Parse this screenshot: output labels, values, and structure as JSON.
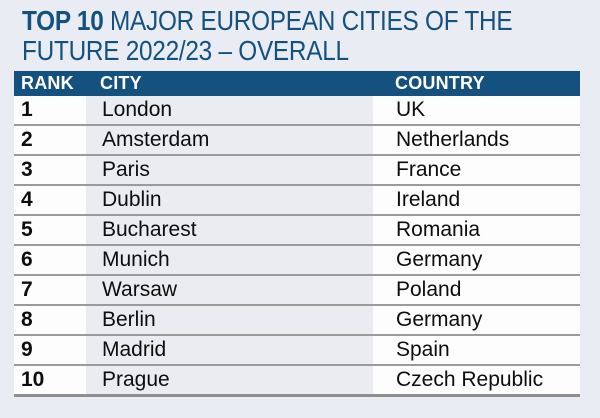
{
  "title": {
    "highlight": "TOP 10",
    "line1_rest": " MAJOR EUROPEAN CITIES OF THE",
    "line2": "FUTURE 2022/23 – OVERALL"
  },
  "table": {
    "headers": {
      "rank": "RANK",
      "city": "CITY",
      "country": "COUNTRY"
    },
    "rows": [
      {
        "rank": "1",
        "city": "London",
        "country": "UK"
      },
      {
        "rank": "2",
        "city": "Amsterdam",
        "country": "Netherlands"
      },
      {
        "rank": "3",
        "city": "Paris",
        "country": "France"
      },
      {
        "rank": "4",
        "city": "Dublin",
        "country": "Ireland"
      },
      {
        "rank": "5",
        "city": "Bucharest",
        "country": "Romania"
      },
      {
        "rank": "6",
        "city": "Munich",
        "country": "Germany"
      },
      {
        "rank": "7",
        "city": "Warsaw",
        "country": "Poland"
      },
      {
        "rank": "8",
        "city": "Berlin",
        "country": "Germany"
      },
      {
        "rank": "9",
        "city": "Madrid",
        "country": "Spain"
      },
      {
        "rank": "10",
        "city": "Prague",
        "country": "Czech Republic"
      }
    ]
  },
  "colors": {
    "accent_blue": "#14517e",
    "page_background": "#eaecf4",
    "city_column_background": "#ebecf2",
    "divider_gray": "#9b9b9b",
    "text_black": "#0d0d0d",
    "header_text": "#ffffff"
  },
  "chart_data": {
    "type": "table",
    "title": "TOP 10 MAJOR EUROPEAN CITIES OF THE FUTURE 2022/23 – OVERALL",
    "columns": [
      "RANK",
      "CITY",
      "COUNTRY"
    ],
    "rows": [
      [
        "1",
        "London",
        "UK"
      ],
      [
        "2",
        "Amsterdam",
        "Netherlands"
      ],
      [
        "3",
        "Paris",
        "France"
      ],
      [
        "4",
        "Dublin",
        "Ireland"
      ],
      [
        "5",
        "Bucharest",
        "Romania"
      ],
      [
        "6",
        "Munich",
        "Germany"
      ],
      [
        "7",
        "Warsaw",
        "Poland"
      ],
      [
        "8",
        "Berlin",
        "Germany"
      ],
      [
        "9",
        "Madrid",
        "Spain"
      ],
      [
        "10",
        "Prague",
        "Czech Republic"
      ]
    ]
  }
}
